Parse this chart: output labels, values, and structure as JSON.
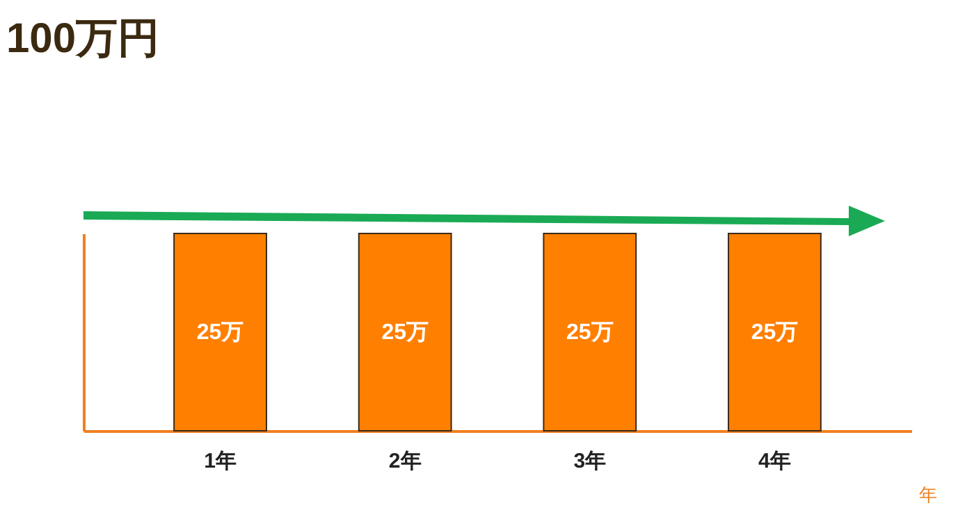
{
  "chart_data": {
    "type": "bar",
    "ylabel": "100万円",
    "xlabel": "年",
    "categories": [
      "1年",
      "2年",
      "3年",
      "4年"
    ],
    "values": [
      25,
      25,
      25,
      25
    ],
    "value_labels": [
      "25万",
      "25万",
      "25万",
      "25万"
    ],
    "color": "#ff7f00"
  }
}
